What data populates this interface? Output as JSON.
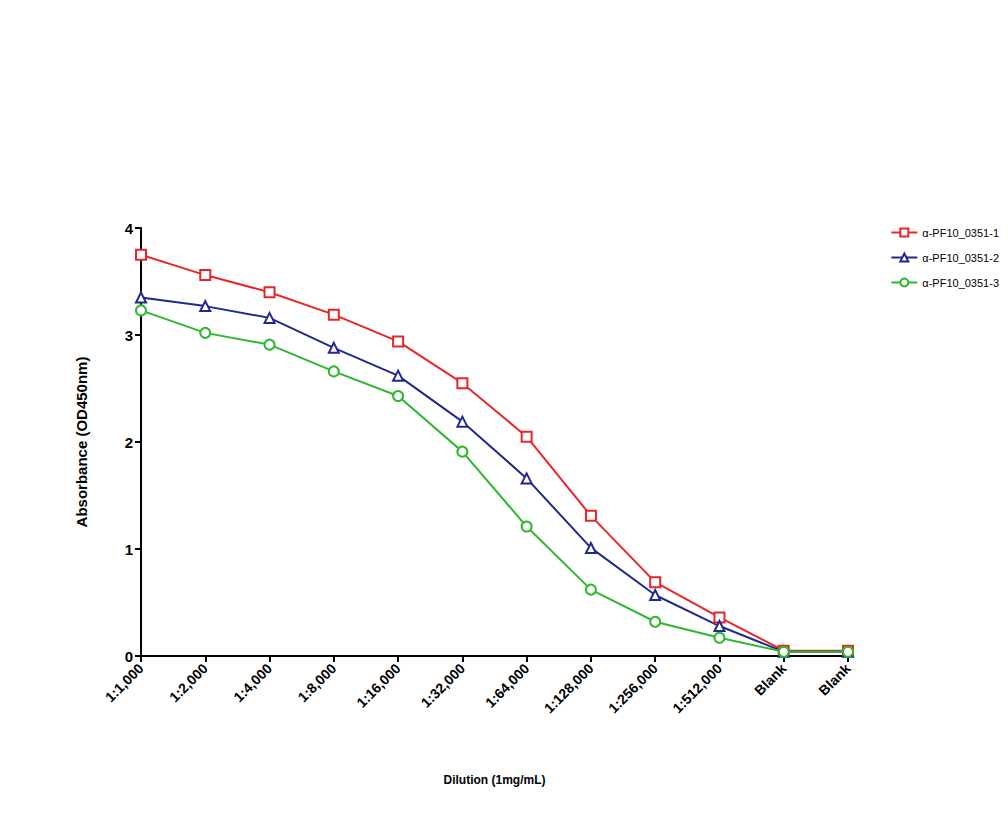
{
  "chart_data": {
    "type": "line",
    "x_label": "Dilution (1mg/mL)",
    "y_label": "Absorbance (OD450nm)",
    "categories": [
      "1:1,000",
      "1:2,000",
      "1:4,000",
      "1:8,000",
      "1:16,000",
      "1:32,000",
      "1:64,000",
      "1:128,000",
      "1:256,000",
      "1:512,000",
      "Blank",
      "Blank"
    ],
    "series": [
      {
        "name": "α-PF10_0351-1",
        "color": "#e8262a",
        "marker": "square",
        "values": [
          3.75,
          3.56,
          3.4,
          3.19,
          2.94,
          2.55,
          2.05,
          1.31,
          0.69,
          0.36,
          0.05,
          0.05
        ]
      },
      {
        "name": "α-PF10_0351-2",
        "color": "#1f2a8c",
        "marker": "triangle",
        "values": [
          3.35,
          3.27,
          3.16,
          2.88,
          2.62,
          2.19,
          1.66,
          1.01,
          0.57,
          0.28,
          0.04,
          0.04
        ]
      },
      {
        "name": "α-PF10_0351-3",
        "color": "#2eb82e",
        "marker": "circle",
        "values": [
          3.23,
          3.02,
          2.91,
          2.66,
          2.43,
          1.91,
          1.21,
          0.62,
          0.32,
          0.17,
          0.04,
          0.04
        ]
      }
    ],
    "ylim": [
      0,
      4
    ],
    "yticks": [
      0,
      1,
      2,
      3,
      4
    ],
    "grid": false,
    "legend": "top-right"
  }
}
